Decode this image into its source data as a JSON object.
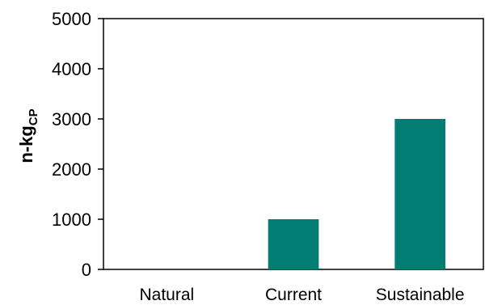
{
  "chart_data": {
    "type": "bar",
    "categories": [
      "Natural",
      "Current",
      "Sustainable"
    ],
    "values": [
      0,
      1000,
      3000
    ],
    "title": "",
    "xlabel": "",
    "ylabel": "n-kg",
    "ylabel_subscript": "CP",
    "ylim": [
      0,
      5000
    ],
    "yticks": [
      0,
      1000,
      2000,
      3000,
      4000,
      5000
    ],
    "grid": false,
    "legend": "none",
    "bar_color": "#017D73",
    "axis_color": "#000000"
  }
}
